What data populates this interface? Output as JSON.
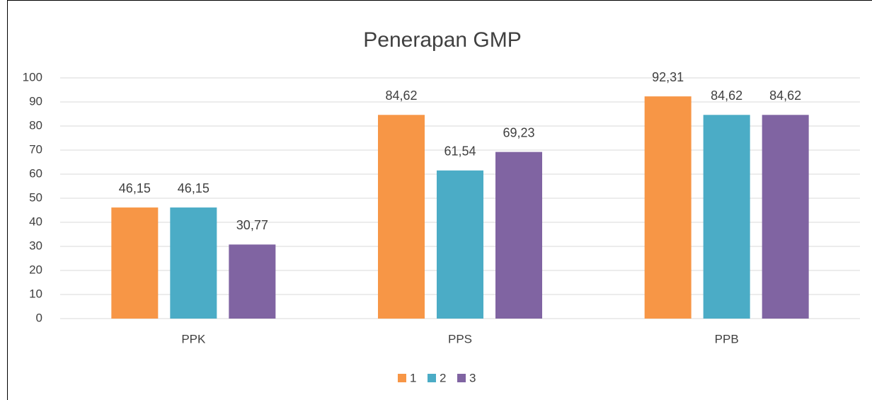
{
  "chart_data": {
    "type": "bar",
    "title": "Penerapan GMP",
    "categories": [
      "PPK",
      "PPS",
      "PPB"
    ],
    "series": [
      {
        "name": "1",
        "color": "#f79646",
        "values": [
          46.15,
          84.62,
          92.31
        ],
        "value_labels": [
          "46,15",
          "84,62",
          "92,31"
        ]
      },
      {
        "name": "2",
        "color": "#4bacc6",
        "values": [
          46.15,
          61.54,
          84.62
        ],
        "value_labels": [
          "46,15",
          "61,54",
          "84,62"
        ]
      },
      {
        "name": "3",
        "color": "#8064a2",
        "values": [
          30.77,
          69.23,
          84.62
        ],
        "value_labels": [
          "30,77",
          "69,23",
          "84,62"
        ]
      }
    ],
    "ylim": [
      0,
      100
    ],
    "yticks": [
      0,
      10,
      20,
      30,
      40,
      50,
      60,
      70,
      80,
      90,
      100
    ],
    "grid": true,
    "legend": "bottom"
  }
}
